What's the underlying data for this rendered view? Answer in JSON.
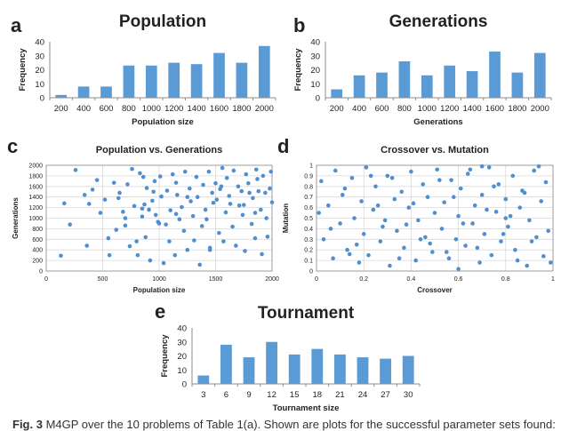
{
  "colors": {
    "bar": "#5b9bd5",
    "point": "#4f8fcf",
    "grid": "#d9d9d9",
    "axis": "#8c8c8c"
  },
  "caption": {
    "label": "Fig. 3",
    "text": "M4GP over the 10 problems of Table 1(a). Shown are plots for the successful parameter sets found:"
  },
  "chart_data": [
    {
      "panel": "a",
      "type": "bar",
      "title": "Population",
      "xlabel": "Population size",
      "ylabel": "Frequency",
      "categories": [
        "200",
        "400",
        "600",
        "800",
        "1000",
        "1200",
        "1400",
        "1600",
        "1800",
        "2000"
      ],
      "values": [
        2,
        8,
        8,
        23,
        23,
        25,
        24,
        32,
        25,
        37
      ],
      "ylim": [
        0,
        40
      ],
      "yticks": [
        0,
        10,
        20,
        30,
        40
      ]
    },
    {
      "panel": "b",
      "type": "bar",
      "title": "Generations",
      "xlabel": "Generations",
      "ylabel": "Frequency",
      "categories": [
        "200",
        "400",
        "600",
        "800",
        "1000",
        "1200",
        "1400",
        "1600",
        "1800",
        "2000"
      ],
      "values": [
        6,
        16,
        18,
        26,
        16,
        23,
        19,
        33,
        18,
        32
      ],
      "ylim": [
        0,
        40
      ],
      "yticks": [
        0,
        10,
        20,
        30,
        40
      ]
    },
    {
      "panel": "c",
      "type": "scatter",
      "title": "Population vs. Generations",
      "xlabel": "Population size",
      "ylabel": "Generations",
      "xlim": [
        0,
        2000
      ],
      "ylim": [
        0,
        2000
      ],
      "xticks": [
        0,
        500,
        1000,
        1500,
        2000
      ],
      "yticks": [
        0,
        200,
        400,
        600,
        800,
        1000,
        1200,
        1400,
        1600,
        1800,
        2000
      ],
      "x": [
        130,
        160,
        210,
        260,
        340,
        360,
        380,
        410,
        450,
        480,
        520,
        550,
        560,
        600,
        620,
        640,
        650,
        680,
        700,
        720,
        740,
        760,
        780,
        800,
        810,
        830,
        850,
        860,
        870,
        880,
        890,
        910,
        920,
        940,
        960,
        970,
        990,
        1010,
        1020,
        1040,
        1060,
        1070,
        1090,
        1100,
        1120,
        1140,
        1150,
        1160,
        1180,
        1200,
        1220,
        1230,
        1250,
        1270,
        1280,
        1300,
        1310,
        1330,
        1340,
        1360,
        1380,
        1390,
        1410,
        1420,
        1440,
        1450,
        1470,
        1480,
        1500,
        1510,
        1530,
        1540,
        1560,
        1570,
        1590,
        1600,
        1620,
        1630,
        1650,
        1660,
        1680,
        1700,
        1710,
        1730,
        1740,
        1760,
        1770,
        1790,
        1800,
        1820,
        1830,
        1850,
        1860,
        1870,
        1880,
        1900,
        1910,
        1920,
        1940,
        1950,
        1960,
        1980,
        1990,
        2000,
        850,
        1150,
        1450,
        1750,
        950,
        1250,
        1550,
        1850,
        700,
        1000
      ],
      "y": [
        290,
        1280,
        880,
        1910,
        1440,
        480,
        1270,
        1540,
        1720,
        1100,
        1350,
        620,
        300,
        1670,
        780,
        1380,
        1480,
        1120,
        860,
        1640,
        470,
        1930,
        1230,
        560,
        300,
        1850,
        1030,
        1780,
        1260,
        640,
        1570,
        1160,
        200,
        1330,
        1700,
        1060,
        930,
        1790,
        1410,
        150,
        880,
        1520,
        560,
        1150,
        1830,
        300,
        1670,
        1440,
        980,
        1210,
        760,
        1880,
        400,
        1560,
        1320,
        1040,
        580,
        1780,
        1400,
        120,
        850,
        1630,
        1160,
        980,
        1880,
        440,
        1480,
        1290,
        1660,
        1350,
        720,
        1550,
        1950,
        560,
        1110,
        1760,
        1420,
        1270,
        840,
        1900,
        480,
        1600,
        1240,
        1510,
        1060,
        380,
        1830,
        1660,
        1480,
        890,
        1380,
        620,
        1920,
        1740,
        1510,
        1160,
        320,
        1800,
        1480,
        1000,
        650,
        1560,
        1880,
        1300,
        1180,
        1080,
        400,
        1250,
        1500,
        1400,
        1600,
        1100,
        1000,
        900
      ]
    },
    {
      "panel": "d",
      "type": "scatter",
      "title": "Crossover vs. Mutation",
      "xlabel": "Crossover",
      "ylabel": "Mutation",
      "xlim": [
        0,
        1
      ],
      "ylim": [
        0,
        1
      ],
      "xticks": [
        0,
        0.2,
        0.4,
        0.6,
        0.8,
        1
      ],
      "yticks": [
        0,
        0.1,
        0.2,
        0.3,
        0.4,
        0.5,
        0.6,
        0.7,
        0.8,
        0.9,
        1
      ],
      "x": [
        0.01,
        0.02,
        0.03,
        0.05,
        0.07,
        0.08,
        0.1,
        0.11,
        0.13,
        0.15,
        0.16,
        0.18,
        0.19,
        0.2,
        0.21,
        0.22,
        0.24,
        0.25,
        0.27,
        0.28,
        0.3,
        0.31,
        0.33,
        0.34,
        0.36,
        0.37,
        0.39,
        0.4,
        0.42,
        0.43,
        0.45,
        0.46,
        0.47,
        0.49,
        0.5,
        0.51,
        0.53,
        0.54,
        0.56,
        0.57,
        0.59,
        0.6,
        0.61,
        0.63,
        0.64,
        0.66,
        0.67,
        0.69,
        0.7,
        0.71,
        0.73,
        0.74,
        0.76,
        0.77,
        0.78,
        0.8,
        0.81,
        0.83,
        0.84,
        0.86,
        0.87,
        0.89,
        0.9,
        0.92,
        0.93,
        0.95,
        0.96,
        0.97,
        0.98,
        0.99,
        0.06,
        0.12,
        0.17,
        0.23,
        0.29,
        0.35,
        0.41,
        0.44,
        0.52,
        0.55,
        0.58,
        0.62,
        0.65,
        0.68,
        0.72,
        0.75,
        0.79,
        0.82,
        0.85,
        0.88,
        0.91,
        0.94,
        0.26,
        0.38,
        0.48,
        0.14,
        0.32,
        0.6,
        0.7,
        0.8
      ],
      "y": [
        0.55,
        0.85,
        0.3,
        0.62,
        0.12,
        0.95,
        0.45,
        0.72,
        0.2,
        0.88,
        0.5,
        0.08,
        0.66,
        0.35,
        0.98,
        0.15,
        0.58,
        0.8,
        0.28,
        0.42,
        0.9,
        0.05,
        0.68,
        0.38,
        0.75,
        0.22,
        0.6,
        0.94,
        0.1,
        0.48,
        0.82,
        0.32,
        0.7,
        0.18,
        0.55,
        0.96,
        0.4,
        0.65,
        0.12,
        0.86,
        0.3,
        0.52,
        0.78,
        0.24,
        0.92,
        0.45,
        0.62,
        0.08,
        0.72,
        0.35,
        0.98,
        0.15,
        0.56,
        0.82,
        0.28,
        0.68,
        0.42,
        0.9,
        0.2,
        0.6,
        0.76,
        0.05,
        0.48,
        0.95,
        0.32,
        0.66,
        0.14,
        0.84,
        0.38,
        0.08,
        0.4,
        0.78,
        0.25,
        0.9,
        0.48,
        0.12,
        0.64,
        0.3,
        0.86,
        0.18,
        0.7,
        0.45,
        0.96,
        0.22,
        0.58,
        0.8,
        0.35,
        0.52,
        0.1,
        0.74,
        0.28,
        0.99,
        0.62,
        0.44,
        0.26,
        0.16,
        0.88,
        0.02,
        0.99,
        0.5
      ]
    },
    {
      "panel": "e",
      "type": "bar",
      "title": "Tournament",
      "xlabel": "Tournament size",
      "ylabel": "Frequency",
      "categories": [
        "3",
        "6",
        "9",
        "12",
        "15",
        "18",
        "21",
        "24",
        "27",
        "30"
      ],
      "values": [
        6,
        28,
        19,
        30,
        21,
        25,
        21,
        19,
        18,
        20
      ],
      "ylim": [
        0,
        40
      ],
      "yticks": [
        0,
        10,
        20,
        30,
        40
      ]
    }
  ]
}
